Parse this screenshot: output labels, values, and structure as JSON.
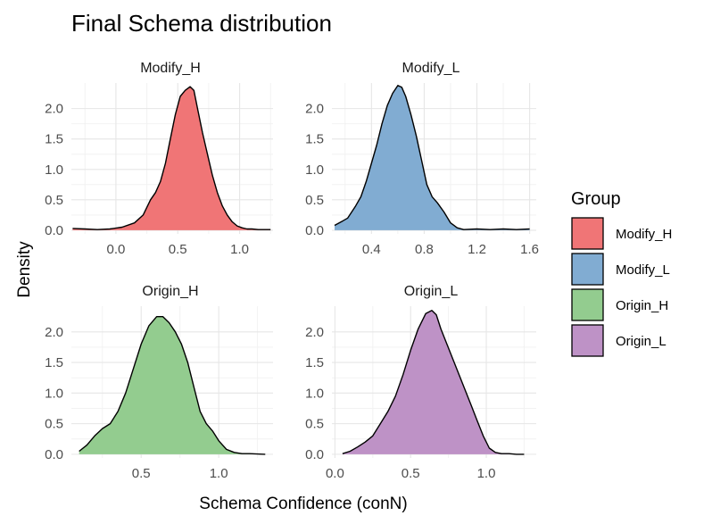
{
  "chart_data": {
    "type": "area",
    "title": "Final Schema distribution",
    "xlabel": "Schema Confidence (conN)",
    "ylabel": "Density",
    "grid": true,
    "legend": {
      "title": "Group",
      "position": "right",
      "entries": [
        {
          "label": "Modify_H",
          "color": "#F07576"
        },
        {
          "label": "Modify_L",
          "color": "#81ACD2"
        },
        {
          "label": "Origin_H",
          "color": "#93CC8F"
        },
        {
          "label": "Origin_L",
          "color": "#BE92C6"
        }
      ]
    },
    "panels": [
      {
        "name": "Modify_H",
        "color": "#F07576",
        "xlim": [
          -0.36,
          1.27
        ],
        "ylim": [
          -0.06,
          2.42
        ],
        "xticks": [
          {
            "v": 0.0,
            "label": "0.0"
          },
          {
            "v": 0.5,
            "label": "0.5"
          },
          {
            "v": 1.0,
            "label": "1.0"
          }
        ],
        "yticks": [
          {
            "v": 0.0,
            "label": "0.0"
          },
          {
            "v": 0.5,
            "label": "0.5"
          },
          {
            "v": 1.0,
            "label": "1.0"
          },
          {
            "v": 1.5,
            "label": "1.5"
          },
          {
            "v": 2.0,
            "label": "2.0"
          }
        ],
        "x": [
          -0.35,
          -0.25,
          -0.15,
          -0.05,
          0.05,
          0.15,
          0.22,
          0.28,
          0.32,
          0.36,
          0.4,
          0.44,
          0.48,
          0.52,
          0.56,
          0.6,
          0.63,
          0.66,
          0.7,
          0.74,
          0.78,
          0.82,
          0.86,
          0.9,
          0.94,
          0.98,
          1.02,
          1.06,
          1.1,
          1.15,
          1.2,
          1.25
        ],
        "y": [
          0.03,
          0.02,
          0.01,
          0.02,
          0.05,
          0.12,
          0.25,
          0.5,
          0.62,
          0.8,
          1.1,
          1.5,
          1.9,
          2.2,
          2.3,
          2.36,
          2.3,
          2.0,
          1.6,
          1.25,
          0.9,
          0.62,
          0.4,
          0.25,
          0.14,
          0.07,
          0.04,
          0.02,
          0.02,
          0.01,
          0.01,
          0.01
        ]
      },
      {
        "name": "Modify_L",
        "color": "#81ACD2",
        "xlim": [
          0.1,
          1.65
        ],
        "ylim": [
          -0.06,
          2.42
        ],
        "xticks": [
          {
            "v": 0.4,
            "label": "0.4"
          },
          {
            "v": 0.8,
            "label": "0.8"
          },
          {
            "v": 1.2,
            "label": "1.2"
          },
          {
            "v": 1.6,
            "label": "1.6"
          }
        ],
        "yticks": [
          {
            "v": 0.0,
            "label": "0.0"
          },
          {
            "v": 0.5,
            "label": "0.5"
          },
          {
            "v": 1.0,
            "label": "1.0"
          },
          {
            "v": 1.5,
            "label": "1.5"
          },
          {
            "v": 2.0,
            "label": "2.0"
          }
        ],
        "x": [
          0.12,
          0.18,
          0.22,
          0.28,
          0.32,
          0.36,
          0.4,
          0.44,
          0.48,
          0.52,
          0.56,
          0.6,
          0.63,
          0.66,
          0.7,
          0.74,
          0.78,
          0.82,
          0.86,
          0.9,
          0.95,
          1.0,
          1.05,
          1.1,
          1.2,
          1.3,
          1.4,
          1.5,
          1.6
        ],
        "y": [
          0.08,
          0.15,
          0.2,
          0.4,
          0.55,
          0.8,
          1.1,
          1.4,
          1.75,
          2.05,
          2.25,
          2.38,
          2.35,
          2.2,
          1.9,
          1.55,
          1.15,
          0.75,
          0.55,
          0.45,
          0.3,
          0.12,
          0.04,
          0.01,
          0.02,
          0.01,
          0.02,
          0.01,
          0.02
        ]
      },
      {
        "name": "Origin_H",
        "color": "#93CC8F",
        "xlim": [
          0.05,
          1.35
        ],
        "ylim": [
          -0.06,
          2.42
        ],
        "xticks": [
          {
            "v": 0.5,
            "label": "0.5"
          },
          {
            "v": 1.0,
            "label": "1.0"
          }
        ],
        "yticks": [
          {
            "v": 0.0,
            "label": "0.0"
          },
          {
            "v": 0.5,
            "label": "0.5"
          },
          {
            "v": 1.0,
            "label": "1.0"
          },
          {
            "v": 1.5,
            "label": "1.5"
          },
          {
            "v": 2.0,
            "label": "2.0"
          }
        ],
        "x": [
          0.1,
          0.15,
          0.2,
          0.25,
          0.3,
          0.35,
          0.4,
          0.45,
          0.5,
          0.55,
          0.6,
          0.64,
          0.68,
          0.72,
          0.76,
          0.8,
          0.84,
          0.88,
          0.92,
          0.96,
          1.0,
          1.05,
          1.1,
          1.15,
          1.2,
          1.3
        ],
        "y": [
          0.05,
          0.15,
          0.3,
          0.42,
          0.5,
          0.7,
          1.0,
          1.4,
          1.8,
          2.1,
          2.25,
          2.25,
          2.15,
          2.0,
          1.8,
          1.5,
          1.1,
          0.7,
          0.5,
          0.38,
          0.22,
          0.08,
          0.03,
          0.01,
          0.01,
          0.0
        ]
      },
      {
        "name": "Origin_L",
        "color": "#BE92C6",
        "xlim": [
          -0.02,
          1.33
        ],
        "ylim": [
          -0.06,
          2.42
        ],
        "xticks": [
          {
            "v": 0.0,
            "label": "0.0"
          },
          {
            "v": 0.5,
            "label": "0.5"
          },
          {
            "v": 1.0,
            "label": "1.0"
          }
        ],
        "yticks": [
          {
            "v": 0.0,
            "label": "0.0"
          },
          {
            "v": 0.5,
            "label": "0.5"
          },
          {
            "v": 1.0,
            "label": "1.0"
          },
          {
            "v": 1.5,
            "label": "1.5"
          },
          {
            "v": 2.0,
            "label": "2.0"
          }
        ],
        "x": [
          0.05,
          0.1,
          0.15,
          0.2,
          0.25,
          0.3,
          0.35,
          0.4,
          0.45,
          0.5,
          0.55,
          0.6,
          0.64,
          0.67,
          0.7,
          0.74,
          0.78,
          0.82,
          0.86,
          0.9,
          0.94,
          0.98,
          1.02,
          1.06,
          1.1,
          1.15,
          1.2,
          1.25
        ],
        "y": [
          0.01,
          0.05,
          0.12,
          0.2,
          0.3,
          0.5,
          0.7,
          0.95,
          1.3,
          1.7,
          2.05,
          2.3,
          2.35,
          2.28,
          2.05,
          1.8,
          1.55,
          1.3,
          1.05,
          0.8,
          0.55,
          0.3,
          0.1,
          0.03,
          0.01,
          0.01,
          0.0,
          0.0
        ]
      }
    ]
  }
}
